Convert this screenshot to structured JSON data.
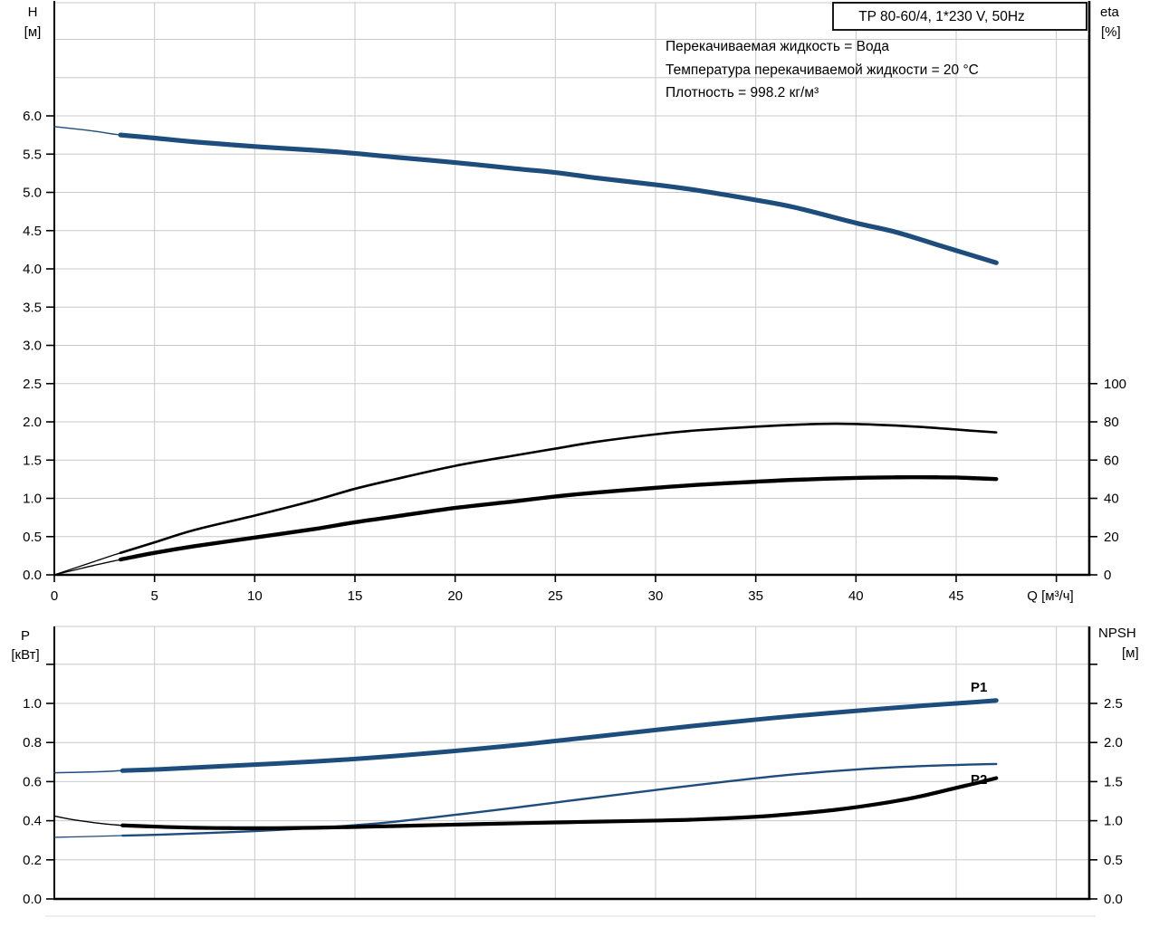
{
  "colors": {
    "curve_blue": "#1d4d7c",
    "curve_black": "#000000",
    "series_label_blue": "#2a5d94",
    "grid": "#c9c9c9",
    "axis": "#000000",
    "cropped_line": "#e3e3e3",
    "background": "#ffffff"
  },
  "top_chart": {
    "title_box": "TP 80-60/4, 1*230 V, 50Hz",
    "annotations": [
      "Перекачиваемая жидкость = Вода",
      "Температура перекачиваемой жидкости = 20 °C",
      "Плотность = 998.2 кг/м³"
    ],
    "y_left": {
      "name": "H",
      "unit": "[м]",
      "ticks": [
        "0.0",
        "0.5",
        "1.0",
        "1.5",
        "2.0",
        "2.5",
        "3.0",
        "3.5",
        "4.0",
        "4.5",
        "5.0",
        "5.5",
        "6.0"
      ]
    },
    "y_right": {
      "name": "eta",
      "unit": "[%]",
      "ticks": [
        "0",
        "20",
        "40",
        "60",
        "80",
        "100"
      ]
    },
    "x": {
      "label": "Q [м³/ч]",
      "ticks": [
        "0",
        "5",
        "10",
        "15",
        "20",
        "25",
        "30",
        "35",
        "40",
        "45"
      ]
    }
  },
  "bottom_chart": {
    "y_left": {
      "name": "P",
      "unit": "[кВт]",
      "ticks": [
        "0.0",
        "0.2",
        "0.4",
        "0.6",
        "0.8",
        "1.0"
      ]
    },
    "y_right": {
      "name": "NPSH",
      "unit": "[м]",
      "ticks": [
        "0.0",
        "0.5",
        "1.0",
        "1.5",
        "2.0",
        "2.5"
      ]
    },
    "series_labels": {
      "p1": "P1",
      "p2": "P2"
    }
  },
  "chart_data": [
    {
      "type": "line",
      "chart": "top",
      "title": "TP 80-60/4, 1*230 V, 50Hz",
      "xlabel": "Q [м³/ч]",
      "x_range": [
        0,
        51.6
      ],
      "y_left_label": "H [м]",
      "y_left_range": [
        0,
        7.5
      ],
      "y_right_label": "eta [%]",
      "y_right_range": [
        0,
        100
      ],
      "grid": true,
      "series": [
        {
          "id": "H",
          "name": "head-curve",
          "axis": "H",
          "color": "blue",
          "thick_from": 3.3,
          "thin_width": 1.4,
          "thick_width": 5.2,
          "points": [
            [
              0,
              5.86
            ],
            [
              2,
              5.8
            ],
            [
              3.3,
              5.75
            ],
            [
              5,
              5.71
            ],
            [
              7,
              5.66
            ],
            [
              10,
              5.6
            ],
            [
              13,
              5.55
            ],
            [
              15,
              5.51
            ],
            [
              17,
              5.46
            ],
            [
              20,
              5.39
            ],
            [
              23,
              5.31
            ],
            [
              25,
              5.26
            ],
            [
              27,
              5.19
            ],
            [
              30,
              5.1
            ],
            [
              32,
              5.03
            ],
            [
              35,
              4.9
            ],
            [
              37,
              4.8
            ],
            [
              40,
              4.6
            ],
            [
              42,
              4.48
            ],
            [
              44,
              4.32
            ],
            [
              45,
              4.24
            ],
            [
              46,
              4.16
            ],
            [
              47,
              4.08
            ]
          ]
        },
        {
          "id": "eta1",
          "name": "efficiency-curve-pump",
          "axis": "eta",
          "color": "black",
          "thick_from": 3.3,
          "thin_width": 1.3,
          "thick_width": 2.6,
          "points": [
            [
              0,
              0
            ],
            [
              1,
              3.5
            ],
            [
              2,
              7
            ],
            [
              3.3,
              11.5
            ],
            [
              5,
              17
            ],
            [
              7,
              23.5
            ],
            [
              10,
              31
            ],
            [
              13,
              39
            ],
            [
              15,
              45
            ],
            [
              17,
              50
            ],
            [
              20,
              57
            ],
            [
              23,
              62.5
            ],
            [
              25,
              66
            ],
            [
              27,
              69.5
            ],
            [
              30,
              73.5
            ],
            [
              32,
              75.5
            ],
            [
              35,
              77.5
            ],
            [
              37,
              78.5
            ],
            [
              39,
              79
            ],
            [
              41,
              78.5
            ],
            [
              43,
              77.5
            ],
            [
              45,
              76
            ],
            [
              46,
              75.2
            ],
            [
              47,
              74.5
            ]
          ]
        },
        {
          "id": "eta2",
          "name": "efficiency-curve-total",
          "axis": "eta",
          "color": "black",
          "thick_from": 3.3,
          "thin_width": 1.3,
          "thick_width": 4.4,
          "points": [
            [
              0,
              0
            ],
            [
              1,
              2.5
            ],
            [
              2,
              5
            ],
            [
              3.3,
              8
            ],
            [
              5,
              11.5
            ],
            [
              7,
              15
            ],
            [
              10,
              19.5
            ],
            [
              13,
              24
            ],
            [
              15,
              27.5
            ],
            [
              17,
              30.5
            ],
            [
              20,
              35
            ],
            [
              23,
              38.5
            ],
            [
              25,
              41
            ],
            [
              27,
              43
            ],
            [
              30,
              45.5
            ],
            [
              32,
              47
            ],
            [
              35,
              48.7
            ],
            [
              37,
              49.7
            ],
            [
              40,
              50.7
            ],
            [
              42,
              51
            ],
            [
              44,
              51
            ],
            [
              45,
              50.9
            ],
            [
              46,
              50.5
            ],
            [
              47,
              50.1
            ]
          ]
        }
      ]
    },
    {
      "type": "line",
      "chart": "bottom",
      "y_left_label": "P [кВт]",
      "y_left_range": [
        0,
        1.4
      ],
      "y_right_label": "NPSH [м]",
      "y_right_range": [
        0,
        3.5
      ],
      "x_range": [
        0,
        51.6
      ],
      "grid": true,
      "series": [
        {
          "id": "P1",
          "name": "input-power-curve",
          "axis": "P",
          "color": "blue",
          "thick_from": 3.4,
          "thin_width": 1.5,
          "thick_width": 5.0,
          "points": [
            [
              0,
              0.645
            ],
            [
              2,
              0.65
            ],
            [
              3.4,
              0.656
            ],
            [
              5,
              0.662
            ],
            [
              7,
              0.672
            ],
            [
              10,
              0.687
            ],
            [
              13,
              0.703
            ],
            [
              15,
              0.716
            ],
            [
              17,
              0.731
            ],
            [
              20,
              0.757
            ],
            [
              23,
              0.786
            ],
            [
              25,
              0.808
            ],
            [
              27,
              0.83
            ],
            [
              30,
              0.864
            ],
            [
              32,
              0.886
            ],
            [
              35,
              0.917
            ],
            [
              37,
              0.936
            ],
            [
              40,
              0.962
            ],
            [
              42,
              0.978
            ],
            [
              44,
              0.993
            ],
            [
              45,
              1.0
            ],
            [
              46,
              1.007
            ],
            [
              47,
              1.015
            ]
          ]
        },
        {
          "id": "P2",
          "name": "shaft-power-curve",
          "axis": "P",
          "color": "blue",
          "thick_from": 3.4,
          "thin_width": 1.3,
          "thick_width": 2.4,
          "points": [
            [
              0,
              0.315
            ],
            [
              2,
              0.32
            ],
            [
              3.4,
              0.324
            ],
            [
              5,
              0.328
            ],
            [
              7,
              0.335
            ],
            [
              10,
              0.347
            ],
            [
              13,
              0.363
            ],
            [
              15,
              0.377
            ],
            [
              17,
              0.395
            ],
            [
              20,
              0.43
            ],
            [
              23,
              0.467
            ],
            [
              25,
              0.493
            ],
            [
              27,
              0.519
            ],
            [
              30,
              0.557
            ],
            [
              32,
              0.582
            ],
            [
              35,
              0.617
            ],
            [
              37,
              0.638
            ],
            [
              40,
              0.662
            ],
            [
              42,
              0.674
            ],
            [
              44,
              0.682
            ],
            [
              45,
              0.685
            ],
            [
              46,
              0.688
            ],
            [
              47,
              0.69
            ]
          ]
        },
        {
          "id": "NPSH",
          "name": "npsh-curve",
          "axis": "NPSH",
          "color": "black",
          "thick_from": 3.4,
          "thin_width": 1.4,
          "thick_width": 4.2,
          "points": [
            [
              0,
              1.06
            ],
            [
              1,
              1.01
            ],
            [
              2,
              0.975
            ],
            [
              3.4,
              0.94
            ],
            [
              5,
              0.925
            ],
            [
              7,
              0.91
            ],
            [
              9,
              0.905
            ],
            [
              11,
              0.905
            ],
            [
              13,
              0.91
            ],
            [
              15,
              0.92
            ],
            [
              17,
              0.932
            ],
            [
              20,
              0.95
            ],
            [
              23,
              0.967
            ],
            [
              25,
              0.978
            ],
            [
              27,
              0.988
            ],
            [
              30,
              1.002
            ],
            [
              32,
              1.015
            ],
            [
              35,
              1.05
            ],
            [
              37,
              1.09
            ],
            [
              39,
              1.14
            ],
            [
              41,
              1.21
            ],
            [
              43,
              1.3
            ],
            [
              45,
              1.42
            ],
            [
              46,
              1.48
            ],
            [
              47,
              1.545
            ]
          ]
        }
      ]
    }
  ]
}
